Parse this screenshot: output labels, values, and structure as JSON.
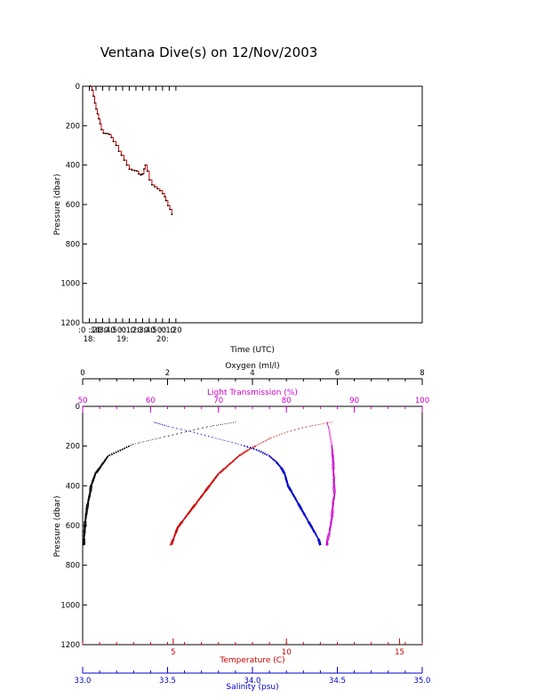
{
  "title": "Ventana Dive(s) on 12/Nov/2003",
  "chart_data": [
    {
      "type": "line",
      "name": "dive-track",
      "xlabel": "Time (UTC)",
      "ylabel": "Pressure (dbar)",
      "xlim": [
        600,
        1110
      ],
      "ylim": [
        1200,
        0
      ],
      "x_unit": "minutes after midnight UTC",
      "yticks": [
        0,
        200,
        400,
        600,
        800,
        1000,
        1200
      ],
      "xticks": [
        {
          "t": 610,
          "label": ":0 :10",
          "sub": "18:"
        },
        {
          "t": 620,
          "label": ":20",
          "sub": ""
        },
        {
          "t": 630,
          "label": ":30",
          "sub": ""
        },
        {
          "t": 640,
          "label": ":40",
          "sub": ""
        },
        {
          "t": 650,
          "label": ":50",
          "sub": ""
        },
        {
          "t": 660,
          "label": ":0",
          "sub": "19:"
        },
        {
          "t": 670,
          "label": ":10",
          "sub": ""
        },
        {
          "t": 680,
          "label": ":20",
          "sub": ""
        },
        {
          "t": 690,
          "label": ":30",
          "sub": ""
        },
        {
          "t": 700,
          "label": ":40",
          "sub": ""
        },
        {
          "t": 710,
          "label": ":50",
          "sub": ""
        },
        {
          "t": 720,
          "label": ":0",
          "sub": "20:"
        },
        {
          "t": 730,
          "label": ":10",
          "sub": ""
        },
        {
          "t": 740,
          "label": ":20",
          "sub": ""
        }
      ],
      "series": [
        {
          "color": "#cc0000",
          "x": [
            611,
            612,
            614,
            616,
            618,
            620,
            622,
            624,
            626,
            628,
            631,
            634,
            637,
            640,
            643,
            646,
            650,
            654,
            658,
            662,
            666,
            670,
            674,
            678,
            681,
            684,
            687,
            689,
            690,
            692,
            694,
            697,
            700,
            704,
            708,
            712,
            716,
            720,
            723,
            725,
            728,
            731,
            734
          ],
          "y": [
            0,
            0,
            20,
            50,
            85,
            115,
            140,
            165,
            190,
            220,
            238,
            240,
            240,
            245,
            260,
            280,
            300,
            330,
            350,
            375,
            400,
            420,
            425,
            428,
            430,
            445,
            450,
            448,
            445,
            420,
            400,
            430,
            475,
            500,
            510,
            520,
            530,
            545,
            560,
            580,
            605,
            625,
            650
          ]
        }
      ]
    },
    {
      "type": "scatter",
      "name": "depth-profiles",
      "ylabel": "Pressure (dbar)",
      "ylim": [
        1200,
        0
      ],
      "yticks": [
        0,
        200,
        400,
        600,
        800,
        1000,
        1200
      ],
      "axes": {
        "oxygen": {
          "label": "Oxygen (ml/l)",
          "range": [
            0,
            8
          ],
          "ticks": [
            0,
            2,
            4,
            6,
            8
          ],
          "color": "#000000",
          "position": "top"
        },
        "light": {
          "label": "Light Transmission (%)",
          "range": [
            50,
            100
          ],
          "ticks": [
            50,
            60,
            70,
            80,
            90,
            100
          ],
          "color": "#cc00cc",
          "position": "top"
        },
        "temperature": {
          "label": "Temperature (C)",
          "range": [
            1,
            16
          ],
          "ticks": [
            5,
            10,
            15
          ],
          "color": "#cc0000",
          "position": "bottom"
        },
        "salinity": {
          "label": "Salinity (psu)",
          "range": [
            33.0,
            35.0
          ],
          "ticks": [
            "33.0",
            "33.5",
            "34.0",
            "34.5",
            "35.0"
          ],
          "color": "#0000cc",
          "position": "bottom"
        }
      },
      "series": [
        {
          "axis": "oxygen",
          "color": "#000000",
          "p": [
            80,
            100,
            130,
            160,
            190,
            220,
            250,
            280,
            310,
            340,
            370,
            400,
            430,
            460,
            490,
            520,
            550,
            580,
            610,
            640,
            670,
            700
          ],
          "v": [
            3.6,
            3.0,
            2.4,
            1.8,
            1.2,
            0.9,
            0.6,
            0.5,
            0.4,
            0.3,
            0.25,
            0.2,
            0.18,
            0.15,
            0.12,
            0.1,
            0.08,
            0.06,
            0.05,
            0.04,
            0.03,
            0.03
          ]
        },
        {
          "axis": "light",
          "color": "#cc00cc",
          "p": [
            80,
            120,
            160,
            200,
            240,
            280,
            320,
            360,
            400,
            440,
            480,
            520,
            560,
            600,
            640,
            680,
            700
          ],
          "v": [
            86,
            86.3,
            86.5,
            86.7,
            86.8,
            86.9,
            86.9,
            87,
            87,
            87.1,
            86.9,
            86.8,
            86.7,
            86.5,
            86.3,
            86,
            86
          ]
        },
        {
          "axis": "temperature",
          "color": "#cc0000",
          "p": [
            80,
            100,
            130,
            160,
            190,
            220,
            250,
            280,
            310,
            340,
            370,
            400,
            430,
            460,
            490,
            520,
            550,
            580,
            610,
            640,
            670,
            700
          ],
          "v": [
            12.0,
            11.0,
            10.0,
            9.3,
            8.8,
            8.3,
            7.9,
            7.6,
            7.3,
            7.0,
            6.8,
            6.6,
            6.4,
            6.2,
            6.0,
            5.8,
            5.6,
            5.4,
            5.2,
            5.1,
            5.0,
            4.9
          ]
        },
        {
          "axis": "salinity",
          "color": "#0000cc",
          "p": [
            80,
            100,
            130,
            160,
            190,
            220,
            250,
            280,
            310,
            340,
            370,
            400,
            430,
            460,
            490,
            520,
            550,
            580,
            610,
            640,
            670,
            700
          ],
          "v": [
            33.42,
            33.5,
            33.65,
            33.78,
            33.92,
            34.03,
            34.1,
            34.14,
            34.17,
            34.19,
            34.2,
            34.21,
            34.23,
            34.25,
            34.27,
            34.29,
            34.31,
            34.33,
            34.35,
            34.37,
            34.39,
            34.4
          ]
        }
      ]
    }
  ]
}
